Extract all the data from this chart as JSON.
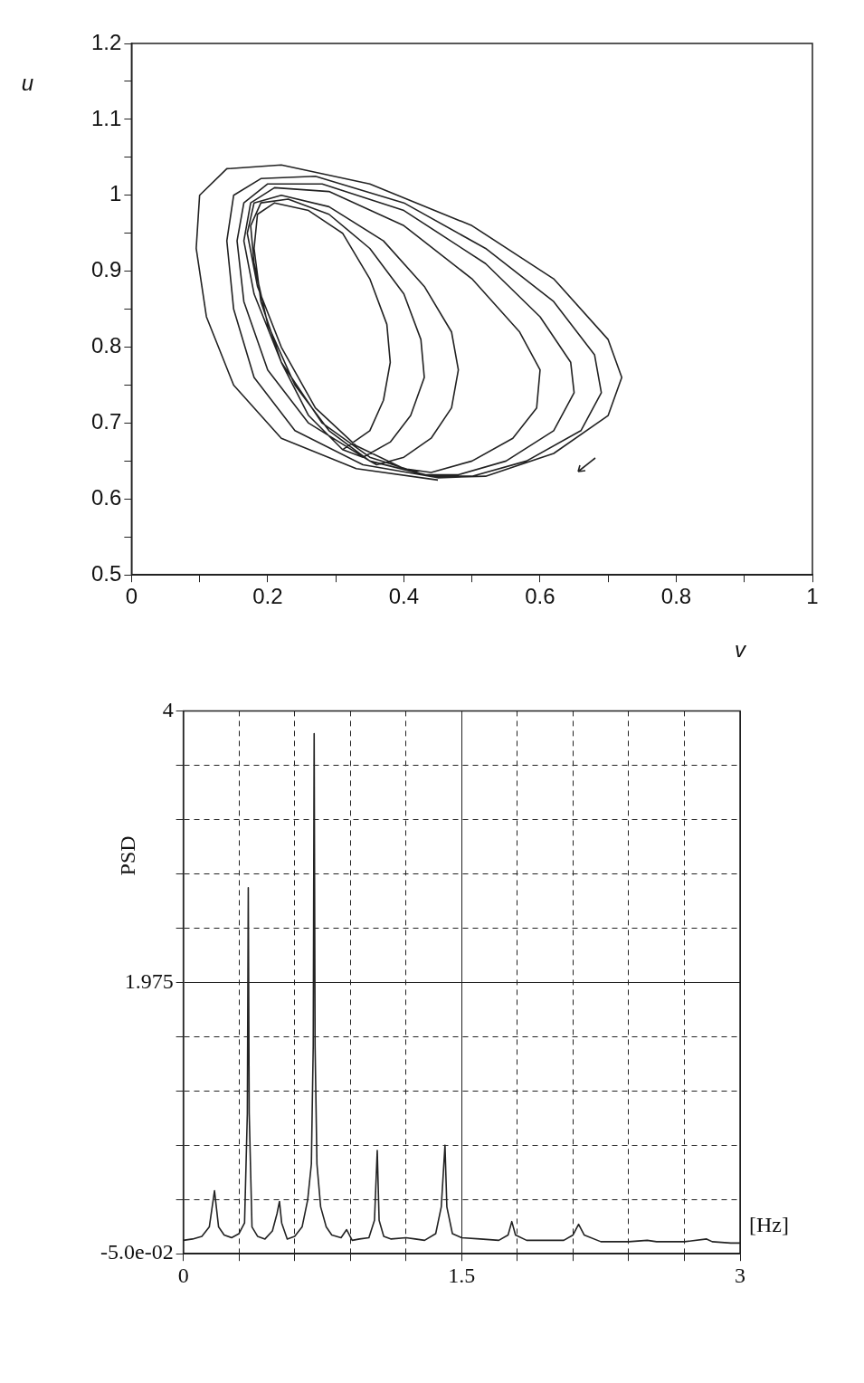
{
  "chart_data": [
    {
      "type": "line",
      "xlabel": "v",
      "ylabel": "u",
      "color": "#222222",
      "x": [
        0.45,
        0.33,
        0.22,
        0.15,
        0.11,
        0.095,
        0.1,
        0.14,
        0.22,
        0.35,
        0.5,
        0.62,
        0.7,
        0.72,
        0.7,
        0.62,
        0.52,
        0.45,
        0.34,
        0.24,
        0.18,
        0.15,
        0.14,
        0.15,
        0.19,
        0.27,
        0.4,
        0.52,
        0.62,
        0.68,
        0.69,
        0.66,
        0.58,
        0.5,
        0.44,
        0.35,
        0.26,
        0.2,
        0.165,
        0.155,
        0.165,
        0.2,
        0.28,
        0.4,
        0.52,
        0.6,
        0.645,
        0.65,
        0.62,
        0.55,
        0.48,
        0.43,
        0.35,
        0.28,
        0.22,
        0.18,
        0.165,
        0.175,
        0.21,
        0.29,
        0.4,
        0.5,
        0.57,
        0.6,
        0.595,
        0.56,
        0.5,
        0.44,
        0.4,
        0.33,
        0.27,
        0.22,
        0.185,
        0.17,
        0.18,
        0.22,
        0.29,
        0.37,
        0.43,
        0.47,
        0.48,
        0.47,
        0.44,
        0.4,
        0.36,
        0.35,
        0.29,
        0.24,
        0.2,
        0.18,
        0.175,
        0.19,
        0.23,
        0.29,
        0.35,
        0.4,
        0.425,
        0.43,
        0.41,
        0.38,
        0.34,
        0.31,
        0.26,
        0.22,
        0.19,
        0.18,
        0.185,
        0.21,
        0.26,
        0.31,
        0.35,
        0.375,
        0.38,
        0.37,
        0.35,
        0.31
      ],
      "values": [
        0.625,
        0.64,
        0.68,
        0.75,
        0.84,
        0.93,
        1.0,
        1.035,
        1.04,
        1.015,
        0.96,
        0.89,
        0.81,
        0.76,
        0.71,
        0.66,
        0.63,
        0.628,
        0.645,
        0.69,
        0.76,
        0.85,
        0.94,
        1.0,
        1.022,
        1.025,
        0.99,
        0.93,
        0.86,
        0.79,
        0.74,
        0.69,
        0.65,
        0.63,
        0.63,
        0.65,
        0.7,
        0.77,
        0.86,
        0.94,
        0.99,
        1.015,
        1.015,
        0.98,
        0.91,
        0.84,
        0.78,
        0.74,
        0.69,
        0.65,
        0.632,
        0.632,
        0.655,
        0.7,
        0.78,
        0.87,
        0.94,
        0.99,
        1.01,
        1.005,
        0.96,
        0.89,
        0.82,
        0.77,
        0.72,
        0.68,
        0.65,
        0.635,
        0.64,
        0.67,
        0.72,
        0.8,
        0.88,
        0.95,
        0.99,
        1.0,
        0.985,
        0.94,
        0.88,
        0.82,
        0.77,
        0.72,
        0.68,
        0.655,
        0.645,
        0.65,
        0.69,
        0.75,
        0.83,
        0.91,
        0.96,
        0.99,
        0.995,
        0.975,
        0.93,
        0.87,
        0.81,
        0.76,
        0.71,
        0.675,
        0.655,
        0.665,
        0.71,
        0.78,
        0.86,
        0.93,
        0.975,
        0.99,
        0.98,
        0.95,
        0.89,
        0.83,
        0.78,
        0.73,
        0.69,
        0.665
      ],
      "xlim": [
        0,
        1
      ],
      "ylim": [
        0.5,
        1.2
      ],
      "xticks": [
        0,
        {
          "value": 0.1,
          "label": null
        },
        0.2,
        {
          "value": 0.3,
          "label": null
        },
        0.4,
        {
          "value": 0.5,
          "label": null
        },
        0.6,
        {
          "value": 0.7,
          "label": null
        },
        0.8,
        {
          "value": 0.9,
          "label": null
        },
        1
      ],
      "yticks": [
        0.5,
        {
          "value": 0.55,
          "label": null
        },
        0.6,
        {
          "value": 0.65,
          "label": null
        },
        0.7,
        {
          "value": 0.75,
          "label": null
        },
        0.8,
        {
          "value": 0.85,
          "label": null
        },
        0.9,
        {
          "value": 0.95,
          "label": null
        },
        1,
        {
          "value": 1.05,
          "label": null
        },
        1.1,
        {
          "value": 1.15,
          "label": null
        },
        1.2
      ]
    },
    {
      "type": "line",
      "xlabel": "[Hz]",
      "ylabel": "PSD",
      "color": "#222222",
      "x": [
        0,
        0.05,
        0.1,
        0.14,
        0.168,
        0.19,
        0.22,
        0.26,
        0.3,
        0.33,
        0.345,
        0.35,
        0.355,
        0.37,
        0.4,
        0.44,
        0.48,
        0.505,
        0.518,
        0.53,
        0.56,
        0.6,
        0.64,
        0.67,
        0.69,
        0.7,
        0.705,
        0.71,
        0.72,
        0.74,
        0.77,
        0.8,
        0.85,
        0.88,
        0.91,
        0.95,
        1.0,
        1.03,
        1.045,
        1.055,
        1.08,
        1.12,
        1.2,
        1.25,
        1.3,
        1.36,
        1.39,
        1.41,
        1.42,
        1.45,
        1.5,
        1.6,
        1.7,
        1.75,
        1.77,
        1.79,
        1.85,
        1.95,
        2.05,
        2.1,
        2.13,
        2.16,
        2.25,
        2.4,
        2.5,
        2.55,
        2.7,
        2.82,
        2.85,
        2.95,
        3
      ],
      "values": [
        0.05,
        0.06,
        0.08,
        0.15,
        0.42,
        0.15,
        0.09,
        0.07,
        0.1,
        0.18,
        1.0,
        2.68,
        1.0,
        0.15,
        0.08,
        0.06,
        0.12,
        0.25,
        0.34,
        0.18,
        0.06,
        0.08,
        0.15,
        0.35,
        0.62,
        1.5,
        3.83,
        1.5,
        0.62,
        0.3,
        0.15,
        0.09,
        0.07,
        0.13,
        0.05,
        0.06,
        0.07,
        0.2,
        0.72,
        0.2,
        0.08,
        0.06,
        0.07,
        0.06,
        0.05,
        0.1,
        0.3,
        0.76,
        0.3,
        0.1,
        0.07,
        0.06,
        0.05,
        0.09,
        0.19,
        0.09,
        0.05,
        0.05,
        0.05,
        0.09,
        0.17,
        0.09,
        0.04,
        0.04,
        0.05,
        0.04,
        0.04,
        0.06,
        0.04,
        0.03,
        0.03
      ],
      "xlim": [
        0,
        3
      ],
      "ylim": [
        -0.05,
        4
      ],
      "xticks": [
        0,
        {
          "value": 0.3,
          "label": null
        },
        {
          "value": 0.6,
          "label": null
        },
        {
          "value": 0.9,
          "label": null
        },
        {
          "value": 1.2,
          "label": null
        },
        1.5,
        {
          "value": 1.8,
          "label": null
        },
        {
          "value": 2.1,
          "label": null
        },
        {
          "value": 2.4,
          "label": null
        },
        {
          "value": 2.7,
          "label": null
        },
        3
      ],
      "yticks": [
        {
          "value": -0.05,
          "label": "-5.0e-02"
        },
        {
          "value": 0.355,
          "label": null
        },
        {
          "value": 0.76,
          "label": null
        },
        {
          "value": 1.165,
          "label": null
        },
        {
          "value": 1.57,
          "label": null
        },
        1.975,
        {
          "value": 2.38,
          "label": null
        },
        {
          "value": 2.785,
          "label": null
        },
        {
          "value": 3.19,
          "label": null
        },
        {
          "value": 3.595,
          "label": null
        },
        4
      ],
      "grid": true
    }
  ]
}
